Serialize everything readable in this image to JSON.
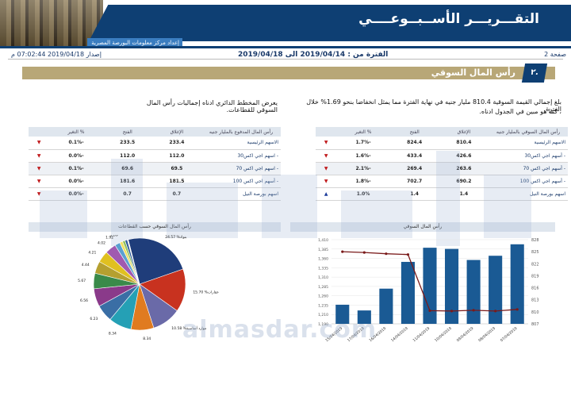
{
  "header": {
    "title": "التقـــريـــر الأســبــوعــــي",
    "subtitle": "إعداد مركز معلومات البورصة المصرية"
  },
  "info": {
    "page": "صفحة 2",
    "period": "الفترة من : 2019/04/14 الى 2019/04/18",
    "issue": "إصدار 2019/04/18 07:02:44 م"
  },
  "section": {
    "number": "٢.",
    "title": "رأس المال السوقي"
  },
  "text": {
    "line1": "بلغ إجمالي القيمة السوقية 810.4 مليار جنيه في نهاية الفترة مما يمثل انخفاضا بنحو 1.69% خلال الفترة",
    "line2": "، كما هو مبين في الجدول ادناه.",
    "line3": "يعرض المخطط الدائري ادناه إجماليات رأس المال السوقي للقطاعات."
  },
  "table_right": {
    "headers": [
      "رأس المال السوقي بالمليار جنيه",
      "الإغلاق",
      "الفتح",
      "% التغير"
    ],
    "rows": [
      {
        "name": "الاسهم الرئيسية",
        "close": "810.4",
        "open": "824.4",
        "chg": "-1.7%",
        "dir": "▼"
      },
      {
        "name": "- أسهم اجي اكس30",
        "close": "426.6",
        "open": "433.4",
        "chg": "-1.6%",
        "dir": "▼"
      },
      {
        "name": "- أسهم اجي اكس 70",
        "close": "263.6",
        "open": "269.4",
        "chg": "-2.1%",
        "dir": "▼"
      },
      {
        "name": "- أسهم اجي اكس 100",
        "close": "690.2",
        "open": "702.7",
        "chg": "-1.8%",
        "dir": "▼"
      },
      {
        "name": "اسهم بورصة النيل",
        "close": "1.4",
        "open": "1.4",
        "chg": "1.0%",
        "dir": "▲"
      }
    ]
  },
  "table_left": {
    "headers": [
      "رأس المال المدفوع بالمليار جنيه",
      "الإغلاق",
      "الفتح",
      "% التغير"
    ],
    "rows": [
      {
        "name": "الاسهم الرئيسية",
        "close": "233.4",
        "open": "233.5",
        "chg": "-0.1%",
        "dir": "▼"
      },
      {
        "name": "- اسهم اجي اكس30",
        "close": "112.0",
        "open": "112.0",
        "chg": "-0.0%",
        "dir": "▼"
      },
      {
        "name": "- اسهم اجي اكس 70",
        "close": "69.5",
        "open": "69.6",
        "chg": "-0.1%",
        "dir": "▼"
      },
      {
        "name": "- أسهم اجي اكس 100",
        "close": "181.5",
        "open": "181.6",
        "chg": "-0.0%",
        "dir": "▼"
      },
      {
        "name": "اسهم بورصة النيل",
        "close": "0.7",
        "open": "0.7",
        "chg": "-0.0%",
        "dir": "▼"
      }
    ]
  },
  "pie_header": "رأس المال السوقي حسب القطاعات",
  "bar_header": "رأس المال السوقي",
  "watermark": "almasdar.com",
  "chart_data": [
    {
      "type": "pie",
      "title": "رأس المال السوقي حسب القطاعات",
      "slices": [
        {
          "label": "بنوك",
          "value": 24.57,
          "color": "#1f3d7a"
        },
        {
          "label": "عقارات",
          "value": 15.7,
          "color": "#c8321f"
        },
        {
          "label": "موارد أساسية",
          "value": 10.58,
          "color": "#6a6aa8"
        },
        {
          "label": "",
          "value": 8.34,
          "color": "#e07b20"
        },
        {
          "label": "",
          "value": 8.34,
          "color": "#25a0b5"
        },
        {
          "label": "",
          "value": 6.23,
          "color": "#3a6ea5"
        },
        {
          "label": "",
          "value": 6.56,
          "color": "#8a3a8a"
        },
        {
          "label": "",
          "value": 5.67,
          "color": "#3a8a4a"
        },
        {
          "label": "",
          "value": 4.44,
          "color": "#b5a030"
        },
        {
          "label": "",
          "value": 4.21,
          "color": "#e0c020"
        },
        {
          "label": "",
          "value": 4.02,
          "color": "#a05ab0"
        },
        {
          "label": "",
          "value": 1.92,
          "color": "#5aa0d0"
        },
        {
          "label": "",
          "value": 1.09,
          "color": "#f0e060"
        },
        {
          "label": "",
          "value": 0.94,
          "color": "#90c060"
        },
        {
          "label": "",
          "value": 0.86,
          "color": "#2a5a9a"
        },
        {
          "label": "",
          "value": 0.23,
          "color": "#d05050"
        },
        {
          "label": "",
          "value": 0.12,
          "color": "#444"
        }
      ]
    },
    {
      "type": "bar",
      "title": "رأس المال السوقي",
      "categories": [
        "15/04/2019",
        "17/04/2019",
        "16/04/2019",
        "14/04/2019",
        "11/04/2019",
        "10/04/2019",
        "09/04/2019",
        "08/04/2019",
        "07/04/2019"
      ],
      "bar_values": [
        1240,
        1225,
        1282,
        1352,
        1389,
        1386,
        1357,
        1368,
        1398
      ],
      "line_values": [
        825,
        824.8,
        824.5,
        824.3,
        810.3,
        810.2,
        810.4,
        810.2,
        810.6
      ],
      "ylim_left": [
        1190,
        1410
      ],
      "ylim_right": [
        807,
        828
      ],
      "left_ticks": [
        "1,410",
        "1,385",
        "1,360",
        "1,335",
        "1,310",
        "1,285",
        "1,260",
        "1,235",
        "1,210",
        "1,190"
      ],
      "right_ticks": [
        "828",
        "825",
        "822",
        "819",
        "816",
        "813",
        "810",
        "807"
      ],
      "bar_color": "#1a5a94",
      "line_color": "#7a1a1a"
    }
  ]
}
